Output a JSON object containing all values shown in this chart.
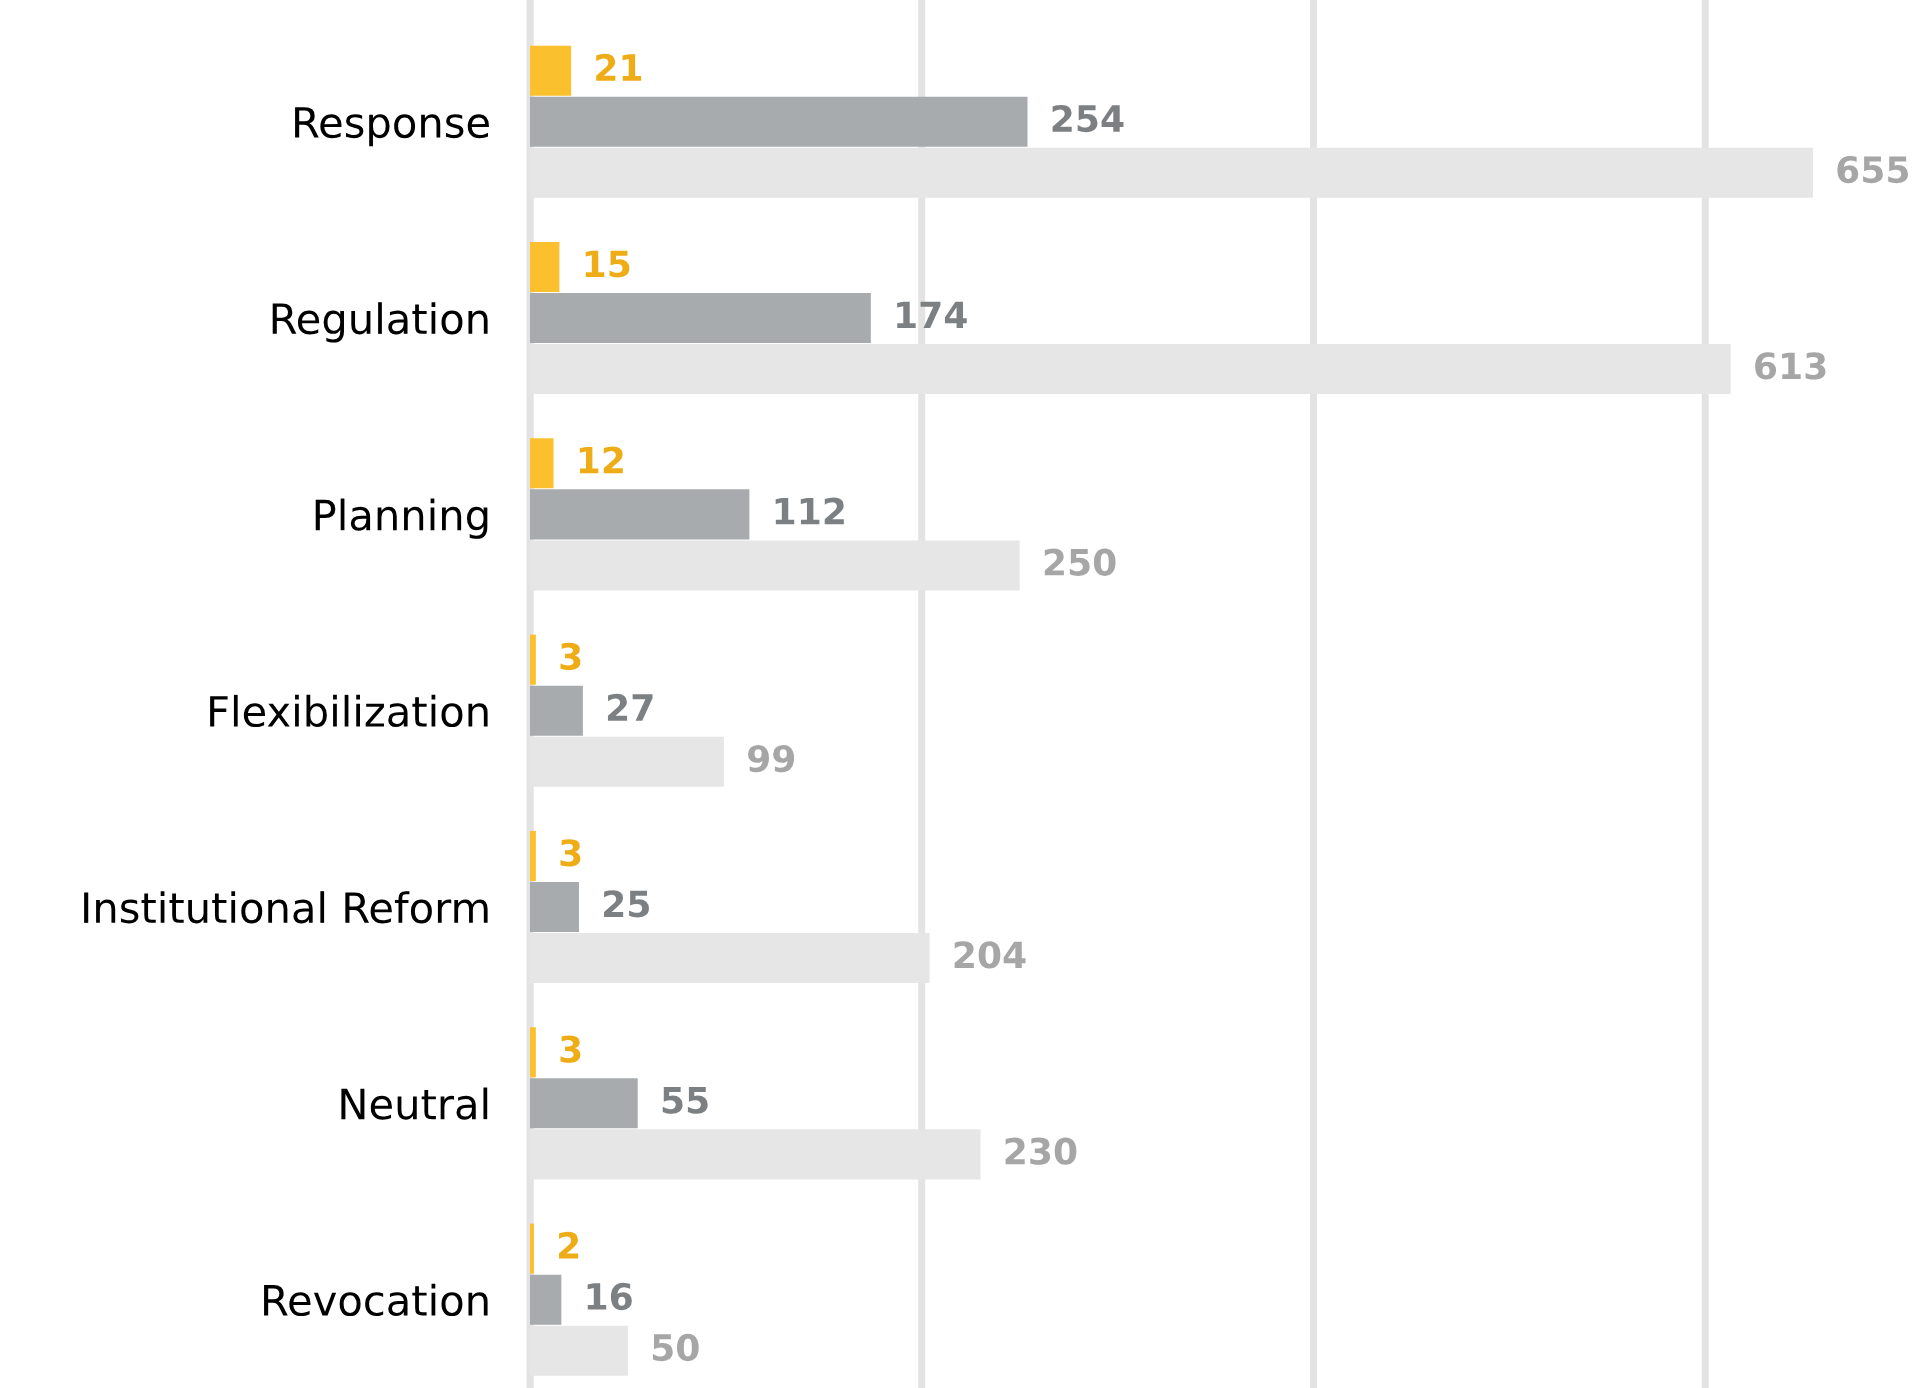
{
  "chart_data": {
    "type": "bar",
    "orientation": "horizontal",
    "categories": [
      "Response",
      "Regulation",
      "Planning",
      "Flexibilization",
      "Institutional Reform",
      "Neutral",
      "Revocation"
    ],
    "series": [
      {
        "color": "#fbc02d",
        "values": [
          21,
          15,
          12,
          3,
          3,
          3,
          2
        ]
      },
      {
        "color": "#a7abad",
        "values": [
          254,
          174,
          112,
          27,
          25,
          55,
          16
        ]
      },
      {
        "color": "#e6e6e6",
        "values": [
          655,
          613,
          250,
          99,
          204,
          230,
          50
        ]
      }
    ],
    "xticks": [
      {
        "value": 0,
        "label": null
      },
      {
        "value": 200,
        "label": null
      },
      {
        "value": 400,
        "label": null
      },
      {
        "value": 600,
        "label": null
      }
    ],
    "grid": "x",
    "tick_labels": "y",
    "data_labels": true
  }
}
